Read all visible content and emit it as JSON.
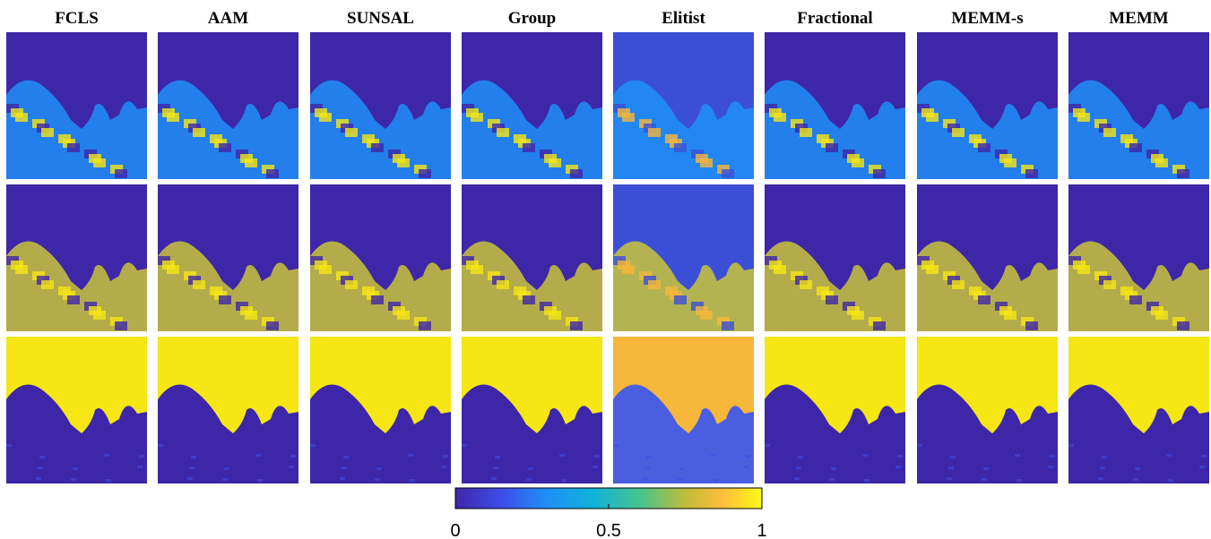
{
  "columns": [
    "FCLS",
    "AAM",
    "SUNSAL",
    "Group",
    "Elitist",
    "Fractional",
    "MEMM-s",
    "MEMM"
  ],
  "colorbar": {
    "lim": [
      0,
      1
    ],
    "ticks": [
      0,
      0.5,
      1
    ]
  }
}
